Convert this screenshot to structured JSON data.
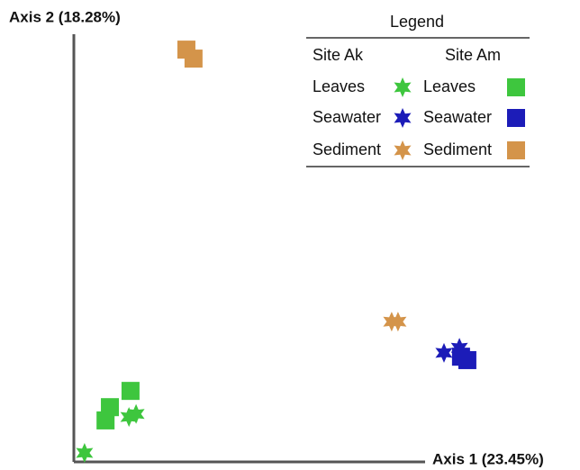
{
  "chart_data": {
    "type": "scatter",
    "xlabel": "Axis 1 (23.45%)",
    "ylabel": "Axis 2 (18.28%)",
    "xlim": [
      0,
      1
    ],
    "ylim": [
      0,
      1
    ],
    "legend_title": "Legend",
    "legend_position": "upper right",
    "groups": [
      {
        "name": "Site Ak",
        "marker": "star",
        "series": [
          {
            "name": "Leaves",
            "color": "#3ec63e",
            "x": [
              0.027,
              0.139,
              0.157
            ],
            "values": [
              0.021,
              0.105,
              0.112
            ]
          },
          {
            "name": "Seawater",
            "color": "#1c1cb8",
            "x": [
              0.934,
              0.973
            ],
            "values": [
              0.255,
              0.267
            ]
          },
          {
            "name": "Sediment",
            "color": "#d4944a",
            "x": [
              0.802,
              0.818
            ],
            "values": [
              0.328,
              0.328
            ]
          }
        ]
      },
      {
        "name": "Site Am",
        "marker": "square",
        "series": [
          {
            "name": "Leaves",
            "color": "#3ec63e",
            "x": [
              0.143,
              0.091,
              0.08
            ],
            "values": [
              0.166,
              0.128,
              0.097
            ]
          },
          {
            "name": "Seawater",
            "color": "#1c1cb8",
            "x": [
              0.977,
              0.993
            ],
            "values": [
              0.246,
              0.238
            ]
          },
          {
            "name": "Sediment",
            "color": "#d4944a",
            "x": [
              0.284,
              0.302
            ],
            "values": [
              0.964,
              0.943
            ]
          }
        ]
      }
    ]
  }
}
